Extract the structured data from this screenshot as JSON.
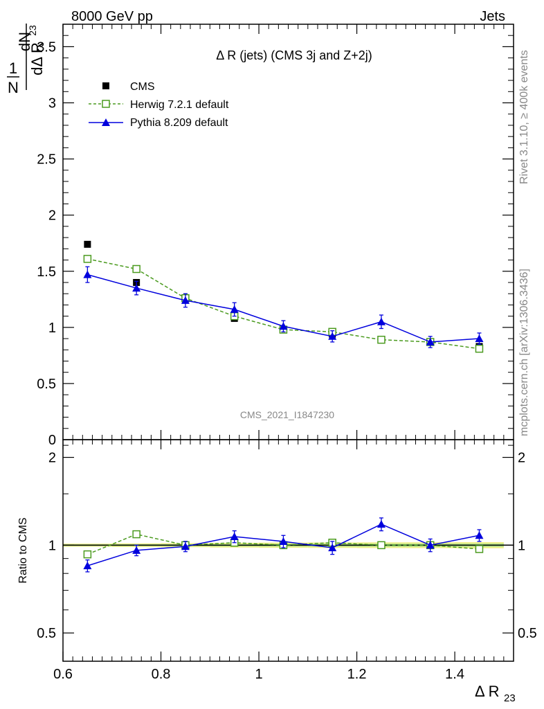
{
  "header": {
    "left": "8000 GeV pp",
    "right": "Jets"
  },
  "side_labels": {
    "rivet": "Rivet 3.1.10, ≥ 400k events",
    "mcplots": "mcplots.cern.ch [arXiv:1306.3436]"
  },
  "chart_data": [
    {
      "type": "line",
      "title": "Δ R (jets) (CMS 3j and Z+2j)",
      "watermark": "CMS_2021_I1847230",
      "xlabel": "Δ R",
      "xlabel_sub": "23",
      "ylabel": "1/N dN/dΔ R23",
      "ylabel_parts": {
        "num": "1",
        "den": "N",
        "dnum": "dN",
        "dden": "dΔ R",
        "sub": "23"
      },
      "xlim": [
        0.6,
        1.52
      ],
      "ylim": [
        0,
        3.7
      ],
      "x_ticks": [
        0.6,
        0.8,
        1.0,
        1.2,
        1.4
      ],
      "x_tick_labels": [
        "0.6",
        "0.8",
        "1",
        "1.2",
        "1.4"
      ],
      "y_ticks": [
        0.5,
        1,
        1.5,
        2,
        2.5,
        3,
        3.5
      ],
      "y_tick_labels": [
        "0.5",
        "1",
        "1.5",
        "2",
        "2.5",
        "3",
        "3.5"
      ],
      "y_bottom_label": "0",
      "legend": {
        "placement": "top-left"
      },
      "bin_edges": [
        0.6,
        0.7,
        0.8,
        0.9,
        1.0,
        1.1,
        1.2,
        1.3,
        1.4,
        1.5
      ],
      "x": [
        0.65,
        0.75,
        0.85,
        0.95,
        1.05,
        1.15,
        1.25,
        1.35,
        1.45
      ],
      "series": [
        {
          "name": "CMS",
          "color": "#000000",
          "style": "data",
          "values": [
            1.74,
            1.4,
            1.26,
            1.08,
            0.98,
            0.94,
            0.89,
            0.87,
            0.83
          ],
          "errors": [
            0.01,
            0.01,
            0.01,
            0.01,
            0.01,
            0.01,
            0.01,
            0.01,
            0.01
          ]
        },
        {
          "name": "Herwig 7.2.1 default",
          "color": "#4a9a1e",
          "style": "dashed",
          "values": [
            1.61,
            1.52,
            1.26,
            1.1,
            0.98,
            0.96,
            0.89,
            0.87,
            0.81
          ],
          "errors": [
            0.01,
            0.01,
            0.04,
            0.02,
            0.01,
            0.01,
            0.01,
            0.01,
            0.01
          ]
        },
        {
          "name": "Pythia 8.209 default",
          "color": "#0000dd",
          "style": "solid",
          "values": [
            1.47,
            1.35,
            1.24,
            1.16,
            1.01,
            0.92,
            1.05,
            0.87,
            0.9
          ],
          "errors": [
            0.07,
            0.06,
            0.06,
            0.06,
            0.05,
            0.05,
            0.06,
            0.05,
            0.05
          ]
        }
      ]
    },
    {
      "type": "line",
      "ylabel": "Ratio to CMS",
      "xlim": [
        0.6,
        1.52
      ],
      "ylim": [
        0.4,
        2.3
      ],
      "scale": "log",
      "y_ticks": [
        0.5,
        1,
        2
      ],
      "y_tick_labels": [
        "0.5",
        "1",
        "2"
      ],
      "band_color": "#f0f08a",
      "band_inner_color": "#a8e08a",
      "series": [
        {
          "name": "Herwig 7.2.1 default",
          "values": [
            0.93,
            1.09,
            1.0,
            1.02,
            1.0,
            1.02,
            1.0,
            1.0,
            0.97
          ],
          "errors": [
            0.01,
            0.01,
            0.03,
            0.02,
            0.01,
            0.01,
            0.01,
            0.01,
            0.01
          ]
        },
        {
          "name": "Pythia 8.209 default",
          "values": [
            0.85,
            0.96,
            0.99,
            1.07,
            1.03,
            0.98,
            1.18,
            1.0,
            1.08
          ],
          "errors": [
            0.04,
            0.04,
            0.04,
            0.05,
            0.05,
            0.05,
            0.06,
            0.05,
            0.05
          ]
        }
      ]
    }
  ]
}
